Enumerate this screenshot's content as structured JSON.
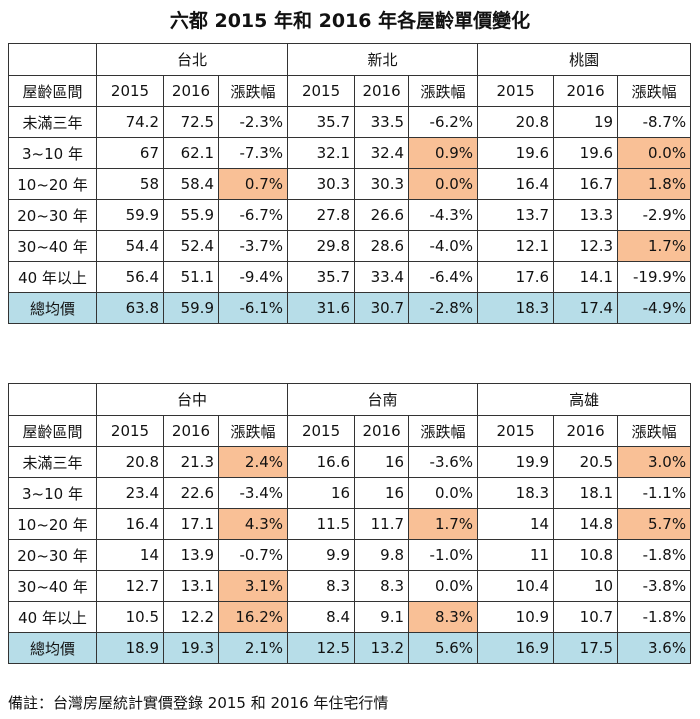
{
  "title": "六都 2015 年和 2016 年各屋齡單價變化",
  "colors": {
    "highlight": "#F9C096",
    "total_row": "#B7DDE8"
  },
  "header_label": "屋齡區間",
  "year_labels": [
    "2015",
    "2016",
    "漲跌幅"
  ],
  "tables": [
    {
      "cities": [
        "台北",
        "新北",
        "桃園"
      ],
      "rows": [
        {
          "label": "未滿三年",
          "values": [
            "74.2",
            "72.5",
            "-2.3%",
            "35.7",
            "33.5",
            "-6.2%",
            "20.8",
            "19",
            "-8.7%"
          ],
          "highlight": []
        },
        {
          "label": "3~10 年",
          "values": [
            "67",
            "62.1",
            "-7.3%",
            "32.1",
            "32.4",
            "0.9%",
            "19.6",
            "19.6",
            "0.0%"
          ],
          "highlight": [
            5,
            8
          ]
        },
        {
          "label": "10~20 年",
          "values": [
            "58",
            "58.4",
            "0.7%",
            "30.3",
            "30.3",
            "0.0%",
            "16.4",
            "16.7",
            "1.8%"
          ],
          "highlight": [
            2,
            5,
            8
          ]
        },
        {
          "label": "20~30 年",
          "values": [
            "59.9",
            "55.9",
            "-6.7%",
            "27.8",
            "26.6",
            "-4.3%",
            "13.7",
            "13.3",
            "-2.9%"
          ],
          "highlight": []
        },
        {
          "label": "30~40 年",
          "values": [
            "54.4",
            "52.4",
            "-3.7%",
            "29.8",
            "28.6",
            "-4.0%",
            "12.1",
            "12.3",
            "1.7%"
          ],
          "highlight": [
            8
          ]
        },
        {
          "label": "40 年以上",
          "values": [
            "56.4",
            "51.1",
            "-9.4%",
            "35.7",
            "33.4",
            "-6.4%",
            "17.6",
            "14.1",
            "-19.9%"
          ],
          "highlight": []
        }
      ],
      "total": {
        "label": "總均價",
        "values": [
          "63.8",
          "59.9",
          "-6.1%",
          "31.6",
          "30.7",
          "-2.8%",
          "18.3",
          "17.4",
          "-4.9%"
        ]
      }
    },
    {
      "cities": [
        "台中",
        "台南",
        "高雄"
      ],
      "rows": [
        {
          "label": "未滿三年",
          "values": [
            "20.8",
            "21.3",
            "2.4%",
            "16.6",
            "16",
            "-3.6%",
            "19.9",
            "20.5",
            "3.0%"
          ],
          "highlight": [
            2,
            8
          ]
        },
        {
          "label": "3~10 年",
          "values": [
            "23.4",
            "22.6",
            "-3.4%",
            "16",
            "16",
            "0.0%",
            "18.3",
            "18.1",
            "-1.1%"
          ],
          "highlight": []
        },
        {
          "label": "10~20 年",
          "values": [
            "16.4",
            "17.1",
            "4.3%",
            "11.5",
            "11.7",
            "1.7%",
            "14",
            "14.8",
            "5.7%"
          ],
          "highlight": [
            2,
            5,
            8
          ]
        },
        {
          "label": "20~30 年",
          "values": [
            "14",
            "13.9",
            "-0.7%",
            "9.9",
            "9.8",
            "-1.0%",
            "11",
            "10.8",
            "-1.8%"
          ],
          "highlight": []
        },
        {
          "label": "30~40 年",
          "values": [
            "12.7",
            "13.1",
            "3.1%",
            "8.3",
            "8.3",
            "0.0%",
            "10.4",
            "10",
            "-3.8%"
          ],
          "highlight": [
            2
          ]
        },
        {
          "label": "40 年以上",
          "values": [
            "10.5",
            "12.2",
            "16.2%",
            "8.4",
            "9.1",
            "8.3%",
            "10.9",
            "10.7",
            "-1.8%"
          ],
          "highlight": [
            2,
            5
          ]
        }
      ],
      "total": {
        "label": "總均價",
        "values": [
          "18.9",
          "19.3",
          "2.1%",
          "12.5",
          "13.2",
          "5.6%",
          "16.9",
          "17.5",
          "3.6%"
        ]
      }
    }
  ],
  "note": "備註：台灣房屋統計實價登錄 2015 和 2016 年住宅行情"
}
